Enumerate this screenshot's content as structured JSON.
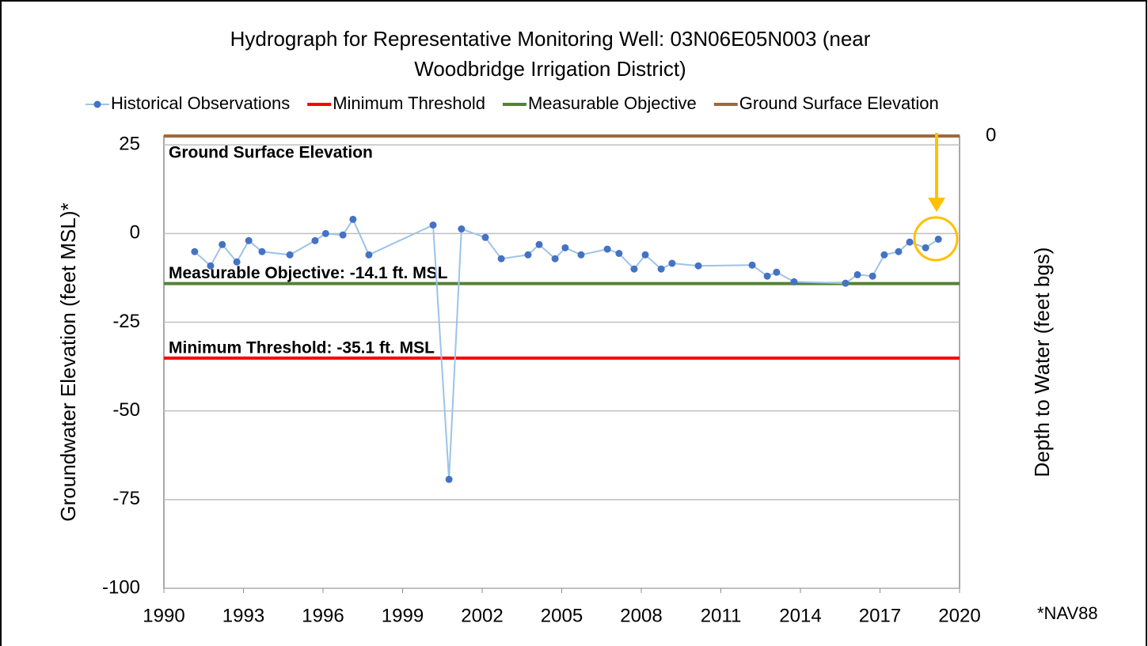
{
  "chart_data": {
    "type": "line",
    "title_lines": [
      "Hydrograph for Representative Monitoring Well: 03N06E05N003 (near",
      "Woodbridge Irrigation District)"
    ],
    "y_label": "Groundwater Elevation (feet MSL)*",
    "y2_label": "Depth to Water (feet bgs)",
    "note": "*NAV88",
    "xlim": [
      1990,
      2020
    ],
    "xticks": [
      1990,
      1993,
      1996,
      1999,
      2002,
      2005,
      2008,
      2011,
      2014,
      2017,
      2020
    ],
    "ylim": [
      -100,
      27.5
    ],
    "yticks": [
      -100,
      -75,
      -50,
      -25,
      0,
      25
    ],
    "y2lim": [
      127.5,
      0
    ],
    "y2ticks": [
      0
    ],
    "grid": true,
    "legend": "top",
    "series": [
      {
        "name": "Historical Observations",
        "color": "#9dc3e6",
        "marker_color": "#4472c4",
        "x": [
          1991.16,
          1991.76,
          1992.2,
          1992.75,
          1993.2,
          1993.7,
          1994.75,
          1995.7,
          1996.1,
          1996.75,
          1997.13,
          1997.73,
          2000.15,
          2000.75,
          2001.22,
          2002.12,
          2002.72,
          2003.73,
          2004.15,
          2004.75,
          2005.13,
          2005.73,
          2006.72,
          2007.16,
          2007.73,
          2008.15,
          2008.75,
          2009.16,
          2010.15,
          2012.18,
          2012.75,
          2013.1,
          2013.76,
          2015.7,
          2016.15,
          2016.72,
          2017.16,
          2017.7,
          2018.12,
          2018.72,
          2019.2
        ],
        "values": [
          -5.1,
          -9.1,
          -3.1,
          -8,
          -2,
          -5.1,
          -6,
          -2,
          0,
          -0.4,
          4,
          -6,
          2.4,
          -69.3,
          1.3,
          -1.1,
          -7.1,
          -6,
          -3.1,
          -7.1,
          -4,
          -6,
          -4.4,
          -5.6,
          -10,
          -6,
          -10,
          -8.4,
          -9.1,
          -8.9,
          -12,
          -10.9,
          -13.6,
          -14,
          -11.6,
          -12,
          -6,
          -5.1,
          -2.4,
          -4,
          -1.6
        ]
      }
    ],
    "reference_lines": [
      {
        "name": "Minimum Threshold",
        "color": "#ff0000",
        "value": -35.1,
        "label": "Minimum Threshold: -35.1 ft. MSL"
      },
      {
        "name": "Measurable Objective",
        "color": "#548235",
        "value": -14.1,
        "label": "Measurable Objective: -14.1 ft. MSL"
      },
      {
        "name": "Ground Surface Elevation",
        "color": "#a0693c",
        "value": 27.5,
        "label": "Ground Surface Elevation"
      }
    ]
  }
}
